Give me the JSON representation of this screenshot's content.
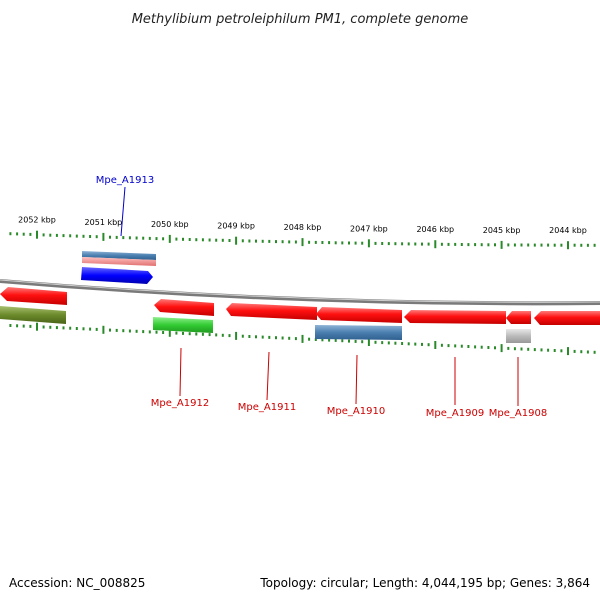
{
  "title": "Methylibium petroleiphilum PM1, complete genome",
  "scale": {
    "unit": "kbp",
    "ticks": [
      {
        "value": 2052,
        "label": "2052 kbp"
      },
      {
        "value": 2051,
        "label": "2051 kbp"
      },
      {
        "value": 2050,
        "label": "2050 kbp"
      },
      {
        "value": 2049,
        "label": "2049 kbp"
      },
      {
        "value": 2048,
        "label": "2048 kbp"
      },
      {
        "value": 2047,
        "label": "2047 kbp"
      },
      {
        "value": 2046,
        "label": "2046 kbp"
      },
      {
        "value": 2045,
        "label": "2045 kbp"
      },
      {
        "value": 2044,
        "label": "2044 kbp"
      }
    ]
  },
  "genes": [
    {
      "name": "Mpe_A1913",
      "color": "#0000cc"
    },
    {
      "name": "Mpe_A1912",
      "color": "#cc0000"
    },
    {
      "name": "Mpe_A1911",
      "color": "#cc0000"
    },
    {
      "name": "Mpe_A1910",
      "color": "#cc0000"
    },
    {
      "name": "Mpe_A1909",
      "color": "#cc0000"
    },
    {
      "name": "Mpe_A1908",
      "color": "#cc0000"
    }
  ],
  "feature_colors": {
    "cds": "#ff1a1a",
    "blue": "#0000ff",
    "steelblue": "#4a7fb0",
    "green": "#33cc33",
    "olive": "#6b8a2a",
    "pink": "#f08080",
    "grey": "#bbbbbb",
    "backbone": "#888888",
    "tick": "#2a8a2a"
  },
  "footer": {
    "accession": "Accession: NC_008825",
    "summary": "Topology: circular; Length: 4,044,195 bp; Genes: 3,864"
  }
}
